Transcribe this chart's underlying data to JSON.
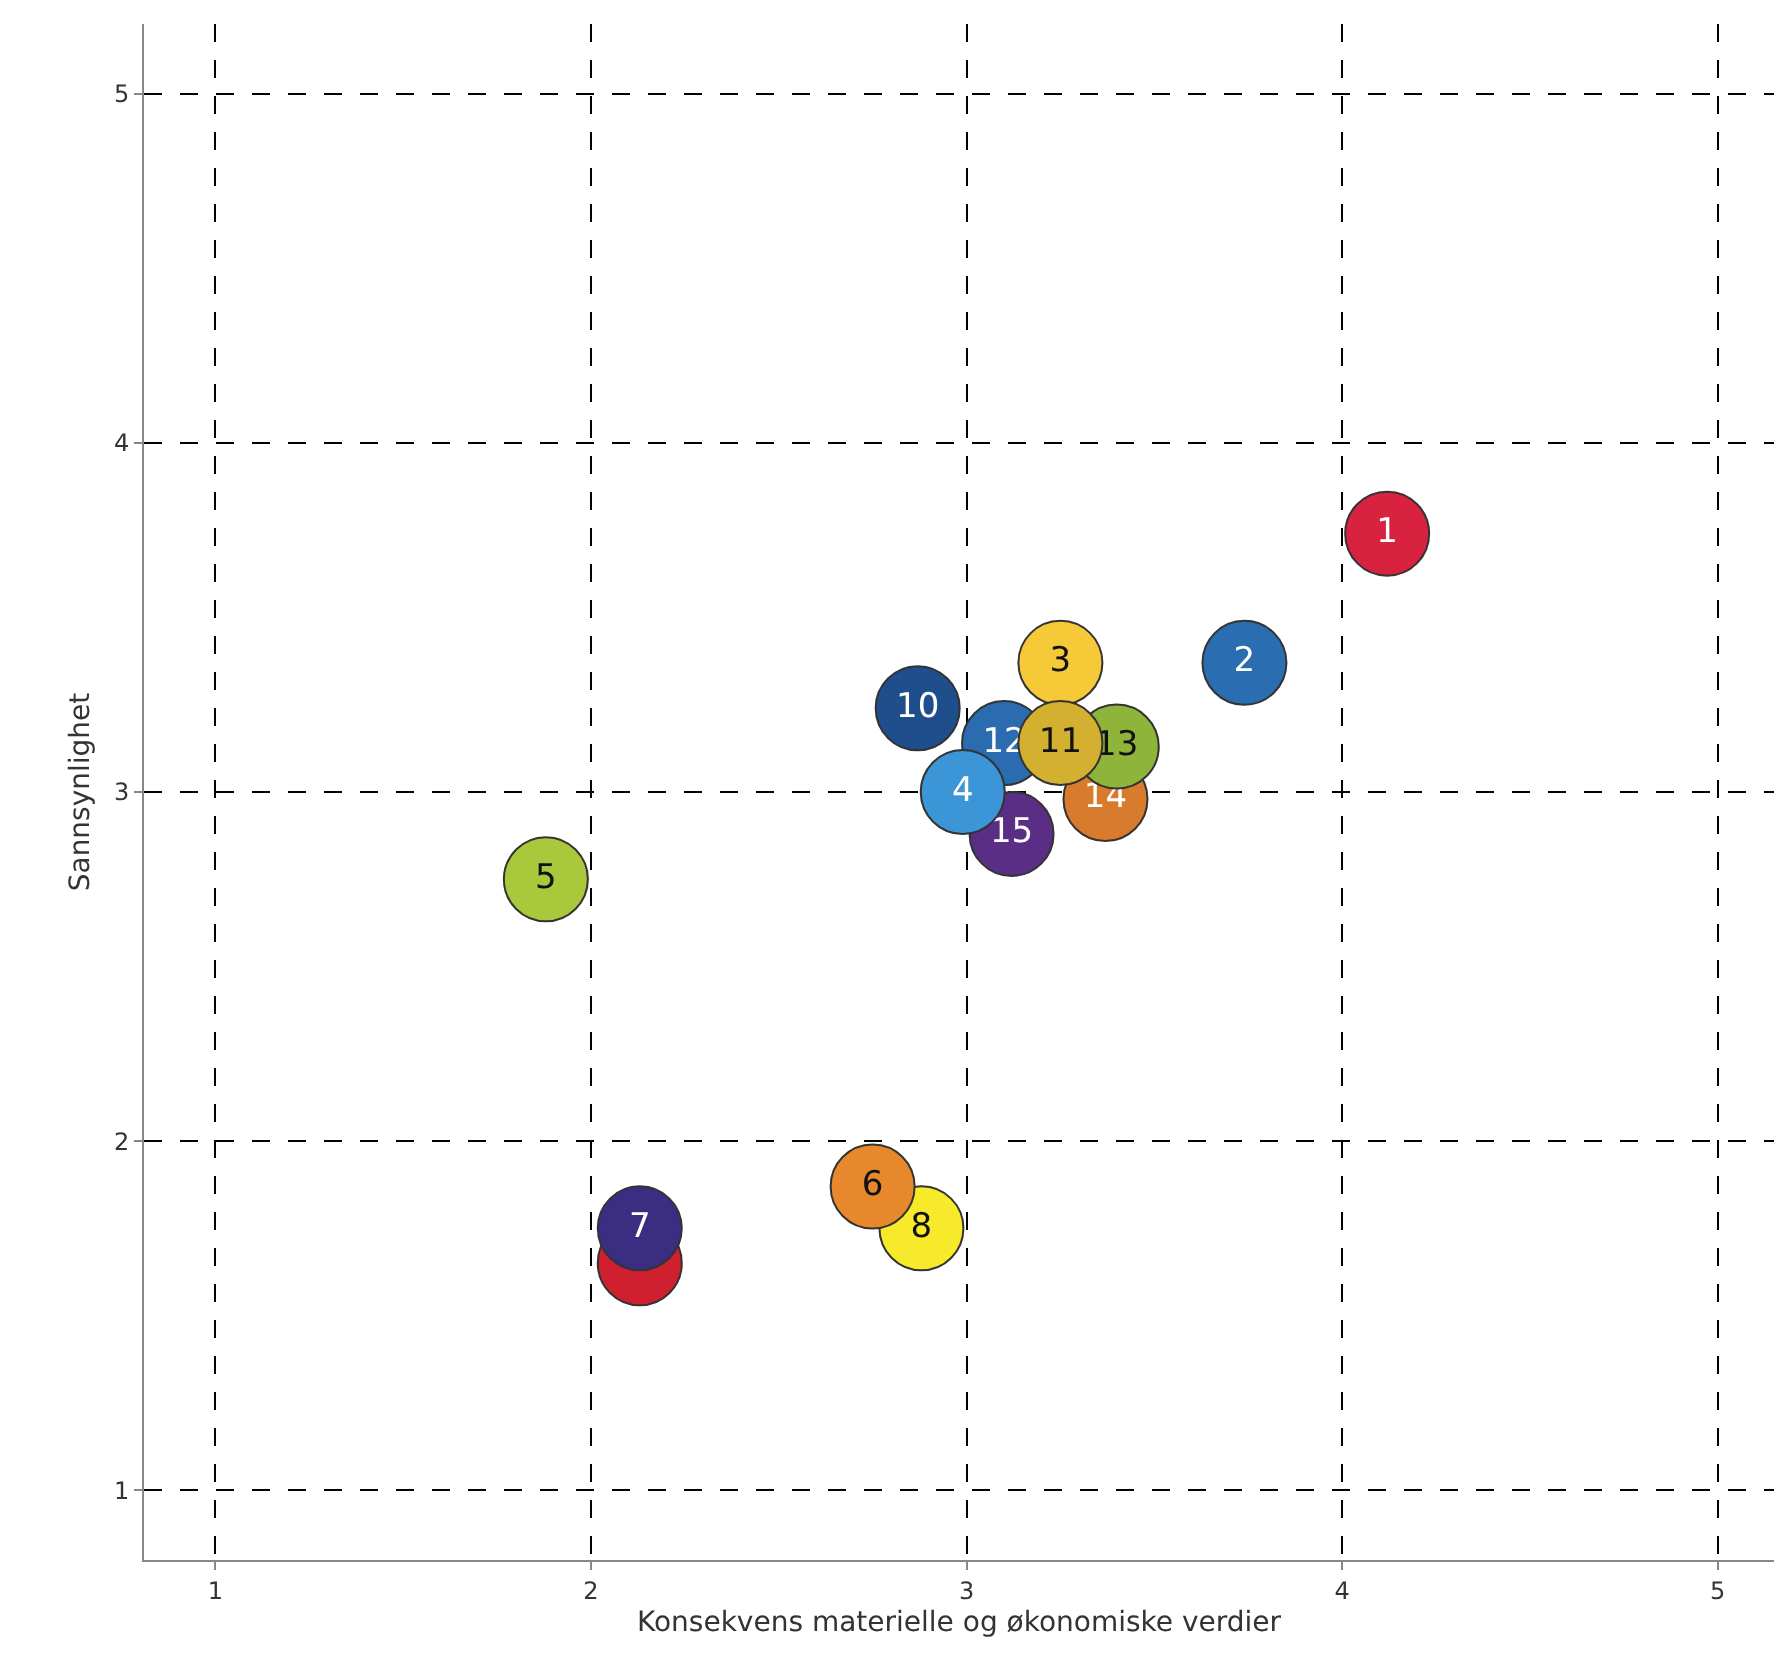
{
  "chart_data": {
    "type": "bubble",
    "xlabel": "Konsekvens materielle og økonomiske verdier",
    "ylabel": "Sannsynlighet",
    "xlim": [
      0.81,
      5.15
    ],
    "ylim": [
      0.8,
      5.2
    ],
    "xticks": [
      1,
      2,
      3,
      4,
      5
    ],
    "yticks": [
      1,
      2,
      3,
      4,
      5
    ],
    "grid": true,
    "legend": false,
    "marker": "circle",
    "series": [
      {
        "color": "#d02030",
        "x": [
          2.13
        ],
        "values": [
          1.65
        ]
      },
      {
        "name": "7",
        "color": "#3a2d82",
        "x": [
          2.13
        ],
        "values": [
          1.75
        ]
      },
      {
        "name": "8",
        "color": "#f7ea2a",
        "x": [
          2.88
        ],
        "values": [
          1.75
        ]
      },
      {
        "name": "6",
        "color": "#e8882c",
        "x": [
          2.75
        ],
        "values": [
          1.87
        ]
      },
      {
        "name": "5",
        "color": "#a9c83c",
        "x": [
          1.88
        ],
        "values": [
          2.75
        ]
      },
      {
        "name": "1",
        "color": "#d9223f",
        "x": [
          4.12
        ],
        "values": [
          3.74
        ]
      },
      {
        "name": "2",
        "color": "#2a6db0",
        "x": [
          3.74
        ],
        "values": [
          3.37
        ]
      },
      {
        "name": "10",
        "color": "#1f4e8c",
        "x": [
          2.87
        ],
        "values": [
          3.24
        ]
      },
      {
        "name": "14",
        "color": "#d97b2c",
        "x": [
          3.37
        ],
        "values": [
          2.98
        ]
      },
      {
        "name": "13",
        "color": "#8fb43a",
        "x": [
          3.4
        ],
        "values": [
          3.13
        ]
      },
      {
        "name": "12",
        "color": "#2b6cb0",
        "x": [
          3.1
        ],
        "values": [
          3.14
        ]
      },
      {
        "name": "15",
        "color": "#5b2e85",
        "x": [
          3.12
        ],
        "values": [
          2.88
        ]
      },
      {
        "name": "4",
        "color": "#3b95d6",
        "x": [
          2.99
        ],
        "values": [
          3.0
        ]
      },
      {
        "name": "3",
        "color": "#f5c938",
        "x": [
          3.25
        ],
        "values": [
          3.37
        ]
      },
      {
        "name": "11",
        "color": "#d4b030",
        "x": [
          3.25
        ],
        "values": [
          3.14
        ]
      }
    ]
  }
}
